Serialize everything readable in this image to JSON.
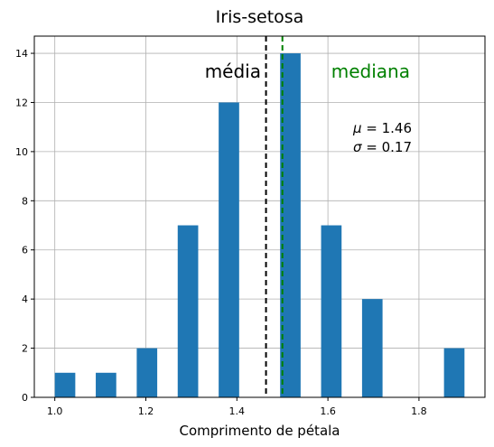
{
  "chart_data": {
    "type": "bar",
    "title": "Iris-setosa",
    "xlabel": "Comprimento de pétala",
    "ylabel": "",
    "xlim": [
      0.955,
      1.945
    ],
    "ylim": [
      0,
      14.7
    ],
    "xticks": [
      1.0,
      1.2,
      1.4,
      1.6,
      1.8
    ],
    "xtick_labels": [
      "1.0",
      "1.2",
      "1.4",
      "1.6",
      "1.8"
    ],
    "yticks": [
      0,
      2,
      4,
      6,
      8,
      10,
      12,
      14
    ],
    "ytick_labels": [
      "0",
      "2",
      "4",
      "6",
      "8",
      "10",
      "12",
      "14"
    ],
    "grid": true,
    "bar_color": "#1f77b4",
    "bins": [
      {
        "left": 1.0,
        "right": 1.045,
        "count": 1
      },
      {
        "left": 1.09,
        "right": 1.135,
        "count": 1
      },
      {
        "left": 1.18,
        "right": 1.225,
        "count": 2
      },
      {
        "left": 1.27,
        "right": 1.315,
        "count": 7
      },
      {
        "left": 1.36,
        "right": 1.405,
        "count": 12
      },
      {
        "left": 1.495,
        "right": 1.54,
        "count": 14
      },
      {
        "left": 1.585,
        "right": 1.63,
        "count": 7
      },
      {
        "left": 1.675,
        "right": 1.72,
        "count": 4
      },
      {
        "left": 1.855,
        "right": 1.9,
        "count": 2
      }
    ],
    "reference_lines": [
      {
        "x": 1.464,
        "label": "média",
        "color": "#000000",
        "style": "dashed"
      },
      {
        "x": 1.5,
        "label": "mediana",
        "color": "#008000",
        "style": "dashed"
      }
    ],
    "stats": {
      "mu_symbol": "μ",
      "mu_value": "1.46",
      "sigma_symbol": "σ",
      "sigma_value": "0.17"
    }
  }
}
